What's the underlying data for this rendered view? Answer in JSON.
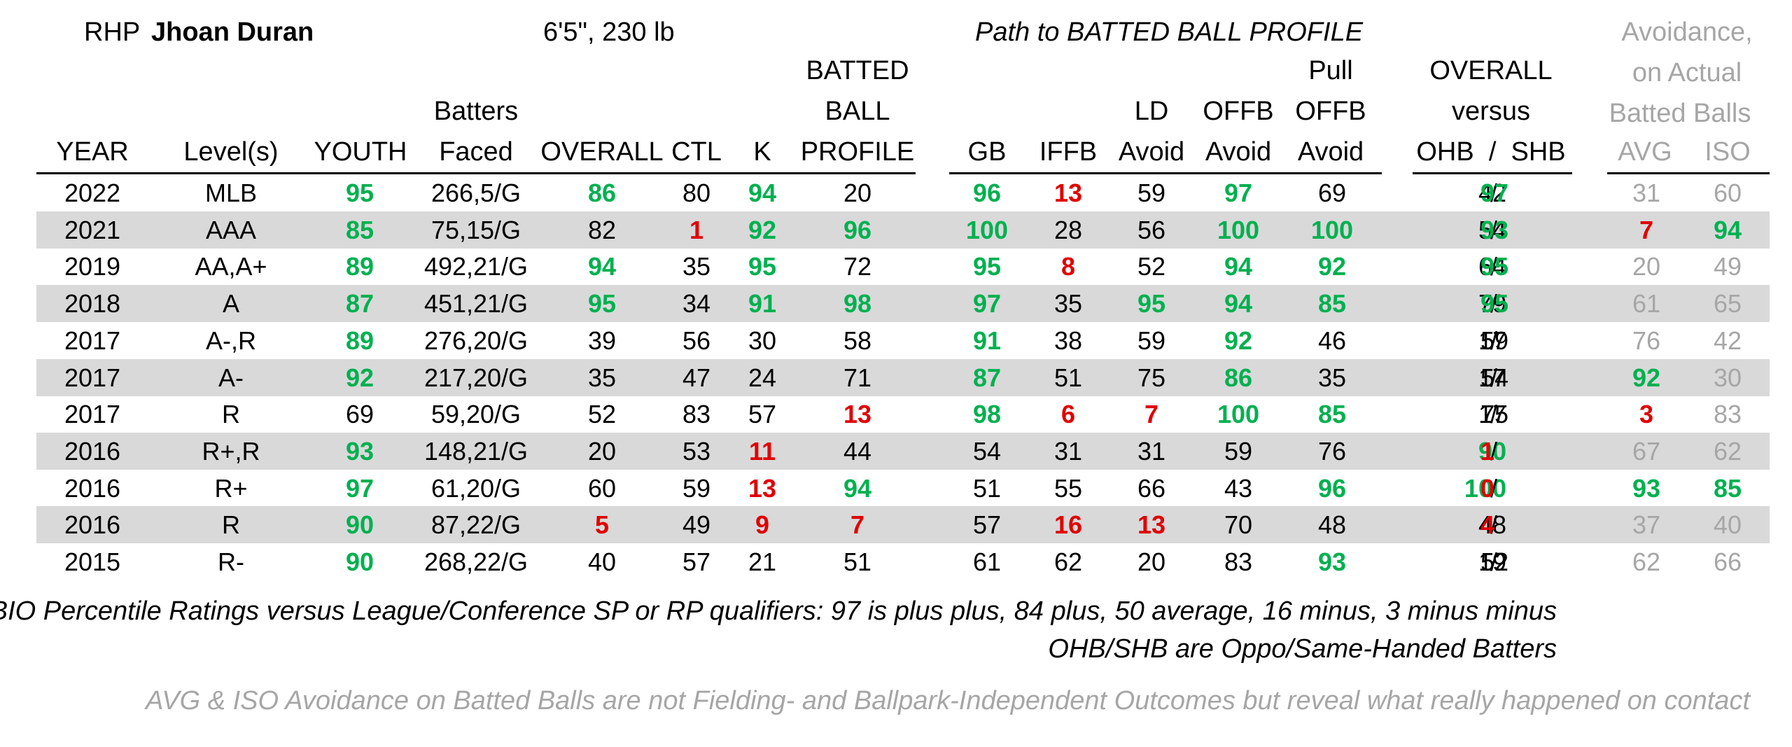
{
  "header": {
    "hand": "RHP",
    "name": "Jhoan Duran",
    "size": "6'5\", 230 lb",
    "path_title": "Path to BATTED BALL PROFILE",
    "avoid_title_1": "Avoidance,",
    "avoid_title_2": "on Actual",
    "avoid_title_3": "Batted Balls"
  },
  "columns": {
    "year": "YEAR",
    "level": "Level(s)",
    "youth": "YOUTH",
    "bf_1": "Batters",
    "bf_2": "Faced",
    "overall": "OVERALL",
    "ctl": "CTL",
    "k": "K",
    "bbp_1": "BATTED",
    "bbp_2": "BALL",
    "bbp_3": "PROFILE",
    "gb": "GB",
    "iffb": "IFFB",
    "ld_1": "LD",
    "ld_2": "Avoid",
    "offb_1": "OFFB",
    "offb_2": "Avoid",
    "poffb_1": "Pull",
    "poffb_2": "OFFB",
    "poffb_3": "Avoid",
    "ovs_1": "OVERALL",
    "ovs_2": "versus",
    "ovs_3": "OHB  /  SHB",
    "avg": "AVG",
    "iso": "ISO"
  },
  "rows": [
    {
      "year": "2022",
      "level": "MLB",
      "youth": "95",
      "bf": "266,5/G",
      "overall": "86",
      "ctl": "80",
      "k": "94",
      "bbp": "20",
      "gb": "96",
      "iffb": "13",
      "ld": "59",
      "offb": "97",
      "poffb": "69",
      "ohb": "42",
      "shb": "97",
      "avg": "31",
      "iso": "60"
    },
    {
      "year": "2021",
      "level": "AAA",
      "youth": "85",
      "bf": "75,15/G",
      "overall": "82",
      "ctl": "1",
      "k": "92",
      "bbp": "96",
      "gb": "100",
      "iffb": "28",
      "ld": "56",
      "offb": "100",
      "poffb": "100",
      "ohb": "54",
      "shb": "93",
      "avg": "7",
      "iso": "94"
    },
    {
      "year": "2019",
      "level": "AA,A+",
      "youth": "89",
      "bf": "492,21/G",
      "overall": "94",
      "ctl": "35",
      "k": "95",
      "bbp": "72",
      "gb": "95",
      "iffb": "8",
      "ld": "52",
      "offb": "94",
      "poffb": "92",
      "ohb": "64",
      "shb": "95",
      "avg": "20",
      "iso": "49"
    },
    {
      "year": "2018",
      "level": "A",
      "youth": "87",
      "bf": "451,21/G",
      "overall": "95",
      "ctl": "34",
      "k": "91",
      "bbp": "98",
      "gb": "97",
      "iffb": "35",
      "ld": "95",
      "offb": "94",
      "poffb": "85",
      "ohb": "79",
      "shb": "95",
      "avg": "61",
      "iso": "65"
    },
    {
      "year": "2017",
      "level": "A-,R",
      "youth": "89",
      "bf": "276,20/G",
      "overall": "39",
      "ctl": "56",
      "k": "30",
      "bbp": "58",
      "gb": "91",
      "iffb": "38",
      "ld": "59",
      "offb": "92",
      "poffb": "46",
      "ohb": "17",
      "shb": "59",
      "avg": "76",
      "iso": "42"
    },
    {
      "year": "2017",
      "level": "A-",
      "youth": "92",
      "bf": "217,20/G",
      "overall": "35",
      "ctl": "47",
      "k": "24",
      "bbp": "71",
      "gb": "87",
      "iffb": "51",
      "ld": "75",
      "offb": "86",
      "poffb": "35",
      "ohb": "17",
      "shb": "54",
      "avg": "92",
      "iso": "30"
    },
    {
      "year": "2017",
      "level": "R",
      "youth": "69",
      "bf": "59,20/G",
      "overall": "52",
      "ctl": "83",
      "k": "57",
      "bbp": "13",
      "gb": "98",
      "iffb": "6",
      "ld": "7",
      "offb": "100",
      "poffb": "85",
      "ohb": "17",
      "shb": "75",
      "avg": "3",
      "iso": "83"
    },
    {
      "year": "2016",
      "level": "R+,R",
      "youth": "93",
      "bf": "148,21/G",
      "overall": "20",
      "ctl": "53",
      "k": "11",
      "bbp": "44",
      "gb": "54",
      "iffb": "31",
      "ld": "31",
      "offb": "59",
      "poffb": "76",
      "ohb": "90",
      "shb": "1",
      "avg": "67",
      "iso": "62"
    },
    {
      "year": "2016",
      "level": "R+",
      "youth": "97",
      "bf": "61,20/G",
      "overall": "60",
      "ctl": "59",
      "k": "13",
      "bbp": "94",
      "gb": "51",
      "iffb": "55",
      "ld": "66",
      "offb": "43",
      "poffb": "96",
      "ohb": "100",
      "shb": "0",
      "avg": "93",
      "iso": "85"
    },
    {
      "year": "2016",
      "level": "R",
      "youth": "90",
      "bf": "87,22/G",
      "overall": "5",
      "ctl": "49",
      "k": "9",
      "bbp": "7",
      "gb": "57",
      "iffb": "16",
      "ld": "13",
      "offb": "70",
      "poffb": "48",
      "ohb": "48",
      "shb": "4",
      "avg": "37",
      "iso": "40"
    },
    {
      "year": "2015",
      "level": "R-",
      "youth": "90",
      "bf": "268,22/G",
      "overall": "40",
      "ctl": "57",
      "k": "21",
      "bbp": "51",
      "gb": "61",
      "iffb": "62",
      "ld": "20",
      "offb": "83",
      "poffb": "93",
      "ohb": "19",
      "shb": "52",
      "avg": "62",
      "iso": "66"
    }
  ],
  "notes": {
    "line1": "FaBIO Percentile Ratings versus League/Conference SP or RP qualifiers: 97 is plus plus, 84 plus, 50 average, 16 minus, 3 minus minus",
    "line2": "OHB/SHB are Oppo/Same-Handed Batters",
    "line3": "AVG & ISO Avoidance on Batted Balls are not Fielding- and Ballpark-Independent Outcomes but reveal what really happened on contact"
  },
  "thresholds": {
    "green_at_or_above": 84,
    "red_at_or_below": 16
  },
  "colors": {
    "green": "#00b050",
    "red": "#e00000",
    "gray_text": "#a6a6a6",
    "row_shade": "#d9d9d9"
  }
}
